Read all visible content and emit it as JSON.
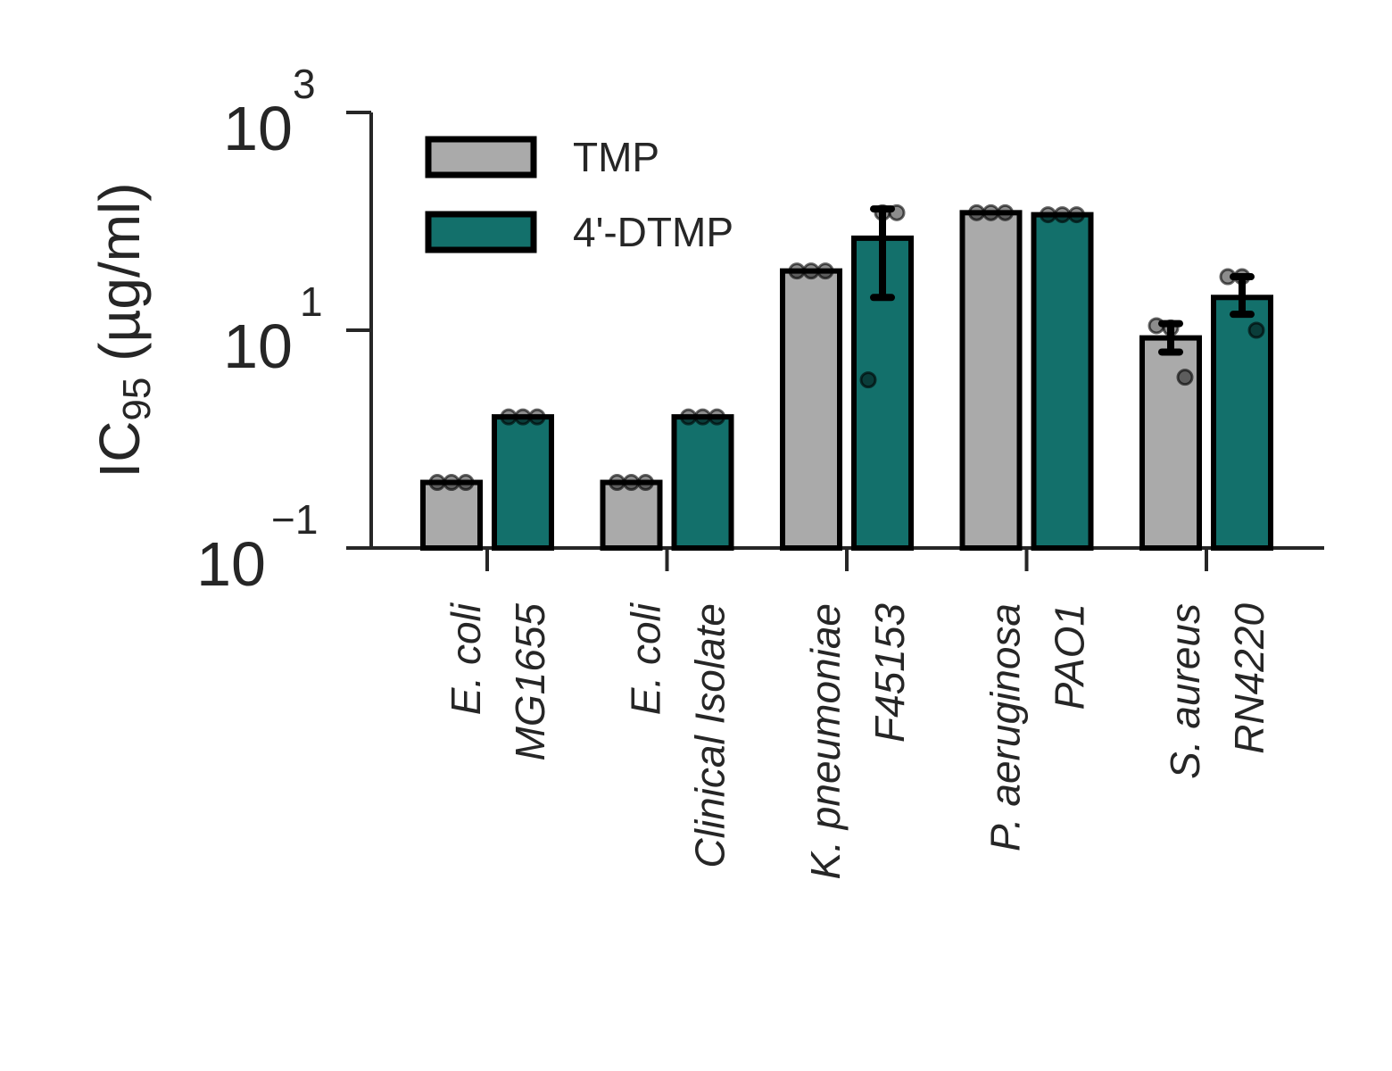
{
  "chart_data": {
    "type": "bar",
    "yscale": "log",
    "ylim": [
      0.1,
      1000
    ],
    "ylabel": {
      "main": "IC",
      "sub": "95",
      "rest": " (µg/ml)"
    },
    "yticks": [
      {
        "value": 0.1,
        "base": "10",
        "exp": "−1"
      },
      {
        "value": 10,
        "base": "10",
        "exp": "1"
      },
      {
        "value": 1000,
        "base": "10",
        "exp": "3"
      }
    ],
    "categories": [
      {
        "species": "E. coli",
        "strain": "MG1655"
      },
      {
        "species": "E. coli",
        "strain": "Clinical Isolate"
      },
      {
        "species": "K. pneumoniae",
        "strain": "F45153"
      },
      {
        "species": "P. aeruginosa",
        "strain": "PAO1"
      },
      {
        "species": "S. aureus",
        "strain": "RN4220"
      }
    ],
    "series": [
      {
        "name": "TMP",
        "color": "#aaaaaa",
        "values": [
          0.4,
          0.4,
          35,
          120,
          8.5
        ],
        "err_low": [
          null,
          null,
          null,
          null,
          6.3
        ],
        "err_high": [
          null,
          null,
          null,
          null,
          11.5
        ],
        "points": [
          [
            0.4,
            0.4,
            0.4
          ],
          [
            0.4,
            0.4,
            0.4
          ],
          [
            35,
            35,
            35
          ],
          [
            120,
            120,
            120
          ],
          [
            11,
            10.5,
            3.7
          ]
        ]
      },
      {
        "name": "4'-DTMP",
        "color": "#13706b",
        "values": [
          1.6,
          1.6,
          70,
          115,
          20
        ],
        "err_low": [
          null,
          null,
          20,
          null,
          14
        ],
        "err_high": [
          null,
          null,
          130,
          null,
          31
        ],
        "points": [
          [
            1.6,
            1.6,
            1.6
          ],
          [
            1.6,
            1.6,
            1.6
          ],
          [
            3.5,
            120,
            120
          ],
          [
            115,
            115,
            115
          ],
          [
            31,
            31,
            10
          ]
        ]
      }
    ],
    "legend": {
      "position": "top-left"
    },
    "grid": false
  }
}
